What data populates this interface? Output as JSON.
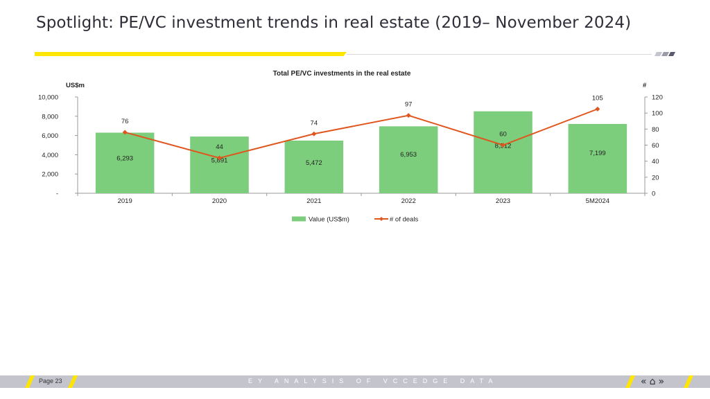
{
  "slide": {
    "title": "Spotlight: PE/VC investment trends in real estate (2019– November 2024)"
  },
  "footer": {
    "page_label": "Page 23",
    "tagline": "EY ANALYSIS OF VCCEDGE DATA",
    "nav": {
      "prev_icon": "double-chevron-left-icon",
      "home_icon": "home-icon",
      "next_icon": "double-chevron-right-icon",
      "prev_glyph": "«",
      "home_glyph": "⌂",
      "next_glyph": "»"
    }
  },
  "colors": {
    "accent_yellow": "#ffe600",
    "bar_green": "#7ccd7c",
    "line_orange": "#e0561f",
    "footer_grey": "#c4c4cd"
  },
  "chart_data": {
    "type": "bar",
    "title": "Total PE/VC investments in the real estate",
    "ylabel": "US$m",
    "y2label": "#",
    "categories": [
      "2019",
      "2020",
      "2021",
      "2022",
      "2023",
      "5M2024"
    ],
    "ylim": [
      0,
      10000
    ],
    "y2lim": [
      0,
      120
    ],
    "yticks": [
      "-",
      "2,000",
      "4,000",
      "6,000",
      "8,000",
      "10,000"
    ],
    "y2ticks": [
      "0",
      "20",
      "40",
      "60",
      "80",
      "100",
      "120"
    ],
    "series": [
      {
        "name": "Value (US$m)",
        "type": "bar",
        "values": [
          6293,
          5891,
          5472,
          6953,
          8512,
          7199
        ],
        "labels": [
          "6,293",
          "5,891",
          "5,472",
          "6,953",
          "8,512",
          "7,199"
        ]
      },
      {
        "name": "# of deals",
        "type": "line",
        "axis": "right",
        "values": [
          76,
          44,
          74,
          97,
          60,
          105
        ],
        "labels": [
          "76",
          "44",
          "74",
          "97",
          "60",
          "105"
        ]
      }
    ],
    "legend": "bottom-center",
    "grid": false
  }
}
